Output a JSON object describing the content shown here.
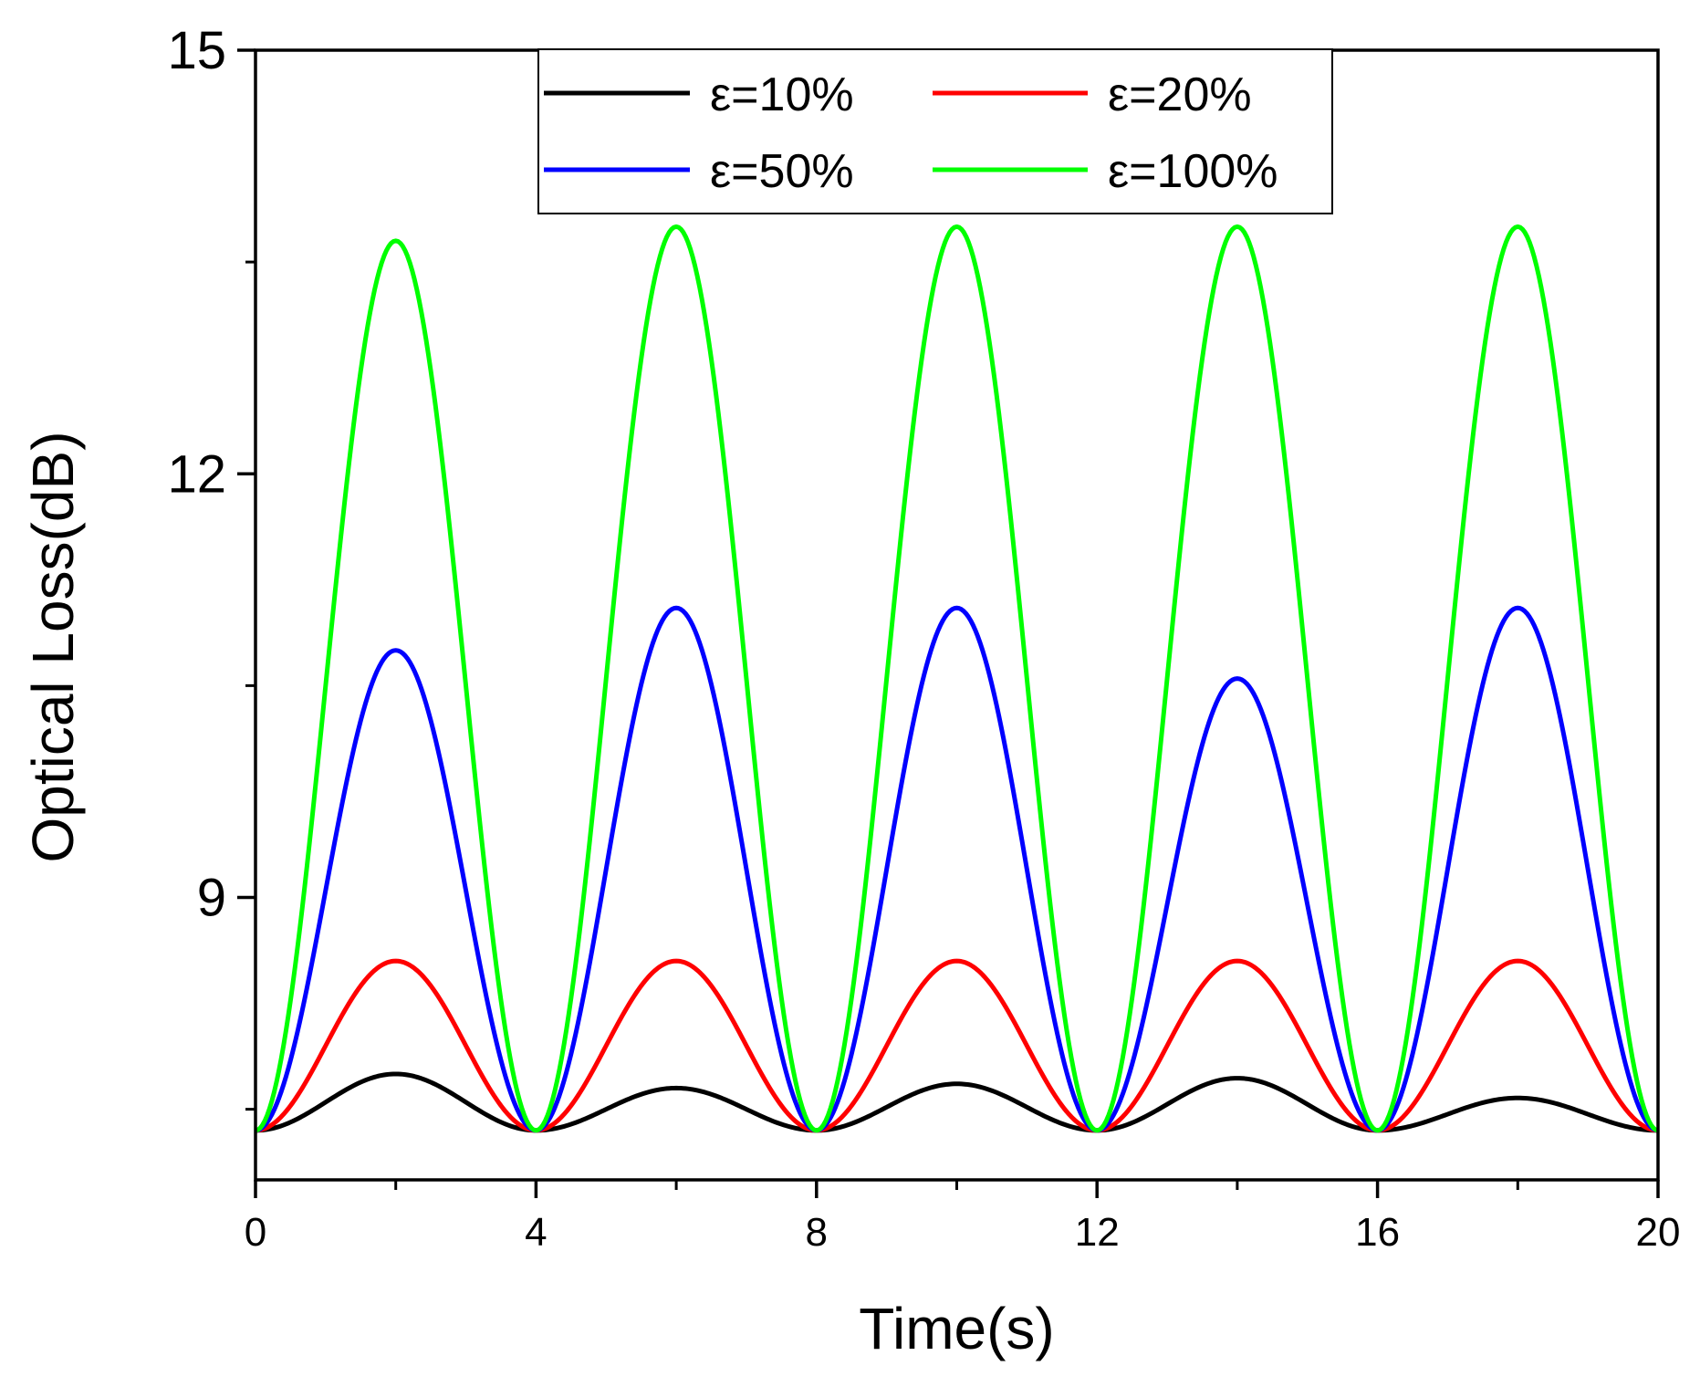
{
  "chart_data": {
    "type": "line",
    "title": "",
    "xlabel": "Time(s)",
    "ylabel": "Optical Loss(dB)",
    "xlim": [
      0,
      20
    ],
    "ylim": [
      7,
      15
    ],
    "x_ticks": [
      0,
      4,
      8,
      12,
      16,
      20
    ],
    "x_tick_labels": [
      "0",
      "4",
      "8",
      "12",
      "16",
      "20"
    ],
    "x_minor_ticks": [
      2,
      6,
      10,
      14,
      18
    ],
    "y_ticks": [
      9,
      12,
      15
    ],
    "y_tick_labels": [
      "9",
      "12",
      "15"
    ],
    "y_minor_ticks": [
      7.5,
      10.5,
      13.5
    ],
    "legend_position": "top-center",
    "grid": false,
    "baseline": 7.35,
    "period": 4,
    "series": [
      {
        "name": "ε=10%",
        "color": "#000000",
        "x": [
          0,
          2,
          4,
          6,
          8,
          10,
          12,
          14,
          16,
          18,
          20
        ],
        "values": [
          7.35,
          7.75,
          7.35,
          7.65,
          7.35,
          7.68,
          7.35,
          7.72,
          7.35,
          7.58,
          7.35
        ]
      },
      {
        "name": "ε=20%",
        "color": "#ff0000",
        "x": [
          0,
          2,
          4,
          6,
          8,
          10,
          12,
          14,
          16,
          18,
          20
        ],
        "values": [
          7.35,
          8.55,
          7.35,
          8.55,
          7.35,
          8.55,
          7.35,
          8.55,
          7.35,
          8.55,
          7.35
        ]
      },
      {
        "name": "ε=50%",
        "color": "#0000ff",
        "x": [
          0,
          2,
          4,
          6,
          8,
          10,
          12,
          14,
          16,
          18,
          20
        ],
        "values": [
          7.35,
          10.75,
          7.35,
          11.05,
          7.35,
          11.05,
          7.35,
          10.55,
          7.35,
          11.05,
          7.35
        ]
      },
      {
        "name": "ε=100%",
        "color": "#00ff00",
        "x": [
          0,
          2,
          4,
          6,
          8,
          10,
          12,
          14,
          16,
          18,
          20
        ],
        "values": [
          7.35,
          13.65,
          7.35,
          13.75,
          7.35,
          13.75,
          7.35,
          13.75,
          7.35,
          13.75,
          7.35
        ]
      }
    ]
  }
}
